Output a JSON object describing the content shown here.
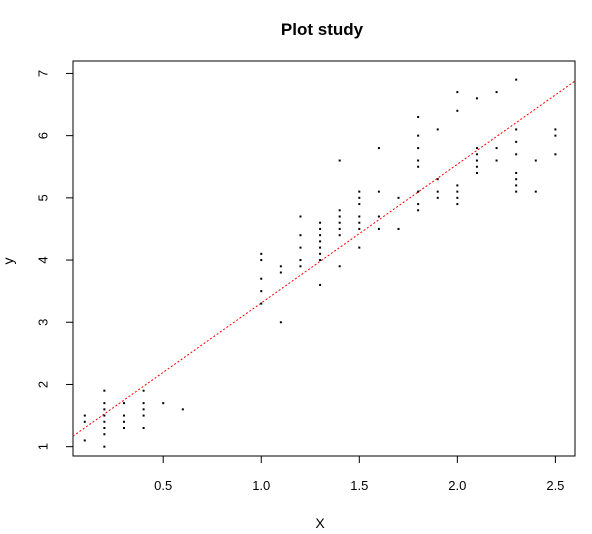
{
  "chart_data": {
    "type": "scatter",
    "title": "Plot study",
    "xlabel": "X",
    "ylabel": "y",
    "xlim": [
      0.04,
      2.6
    ],
    "ylim": [
      0.85,
      7.2
    ],
    "xticks": [
      0.5,
      1.0,
      1.5,
      2.0,
      2.5
    ],
    "xtick_labels": [
      "0.5",
      "1.0",
      "1.5",
      "2.0",
      "2.5"
    ],
    "yticks": [
      1,
      2,
      3,
      4,
      5,
      6,
      7
    ],
    "ytick_labels": [
      "1",
      "2",
      "3",
      "4",
      "5",
      "6",
      "7"
    ],
    "grid": false,
    "legend": "none",
    "point_color": "#000000",
    "fit_line_color": "#ff0000",
    "fit_line": {
      "intercept": 1.08,
      "slope": 2.23
    },
    "points": [
      [
        0.1,
        1.1
      ],
      [
        0.1,
        1.4
      ],
      [
        0.1,
        1.5
      ],
      [
        0.2,
        1.0
      ],
      [
        0.2,
        1.2
      ],
      [
        0.2,
        1.3
      ],
      [
        0.2,
        1.4
      ],
      [
        0.2,
        1.5
      ],
      [
        0.2,
        1.6
      ],
      [
        0.2,
        1.7
      ],
      [
        0.2,
        1.9
      ],
      [
        0.3,
        1.3
      ],
      [
        0.3,
        1.4
      ],
      [
        0.3,
        1.5
      ],
      [
        0.3,
        1.7
      ],
      [
        0.4,
        1.3
      ],
      [
        0.4,
        1.5
      ],
      [
        0.4,
        1.6
      ],
      [
        0.4,
        1.7
      ],
      [
        0.4,
        1.9
      ],
      [
        0.5,
        1.7
      ],
      [
        0.6,
        1.6
      ],
      [
        1.0,
        3.3
      ],
      [
        1.0,
        3.5
      ],
      [
        1.0,
        3.7
      ],
      [
        1.0,
        4.0
      ],
      [
        1.0,
        4.1
      ],
      [
        1.1,
        3.0
      ],
      [
        1.1,
        3.8
      ],
      [
        1.1,
        3.9
      ],
      [
        1.2,
        3.9
      ],
      [
        1.2,
        4.0
      ],
      [
        1.2,
        4.2
      ],
      [
        1.2,
        4.4
      ],
      [
        1.2,
        4.7
      ],
      [
        1.3,
        3.6
      ],
      [
        1.3,
        4.0
      ],
      [
        1.3,
        4.1
      ],
      [
        1.3,
        4.2
      ],
      [
        1.3,
        4.3
      ],
      [
        1.3,
        4.4
      ],
      [
        1.3,
        4.5
      ],
      [
        1.3,
        4.6
      ],
      [
        1.4,
        3.9
      ],
      [
        1.4,
        4.4
      ],
      [
        1.4,
        4.5
      ],
      [
        1.4,
        4.6
      ],
      [
        1.4,
        4.7
      ],
      [
        1.4,
        4.8
      ],
      [
        1.4,
        5.6
      ],
      [
        1.5,
        4.2
      ],
      [
        1.5,
        4.5
      ],
      [
        1.5,
        4.6
      ],
      [
        1.5,
        4.7
      ],
      [
        1.5,
        4.9
      ],
      [
        1.5,
        5.0
      ],
      [
        1.5,
        5.1
      ],
      [
        1.6,
        4.5
      ],
      [
        1.6,
        4.7
      ],
      [
        1.6,
        5.1
      ],
      [
        1.6,
        5.8
      ],
      [
        1.7,
        4.5
      ],
      [
        1.7,
        5.0
      ],
      [
        1.8,
        4.8
      ],
      [
        1.8,
        4.9
      ],
      [
        1.8,
        5.1
      ],
      [
        1.8,
        5.5
      ],
      [
        1.8,
        5.6
      ],
      [
        1.8,
        5.8
      ],
      [
        1.8,
        6.0
      ],
      [
        1.8,
        6.3
      ],
      [
        1.9,
        5.0
      ],
      [
        1.9,
        5.1
      ],
      [
        1.9,
        5.3
      ],
      [
        1.9,
        6.1
      ],
      [
        2.0,
        4.9
      ],
      [
        2.0,
        5.0
      ],
      [
        2.0,
        5.1
      ],
      [
        2.0,
        5.2
      ],
      [
        2.0,
        6.4
      ],
      [
        2.0,
        6.7
      ],
      [
        2.1,
        5.4
      ],
      [
        2.1,
        5.5
      ],
      [
        2.1,
        5.6
      ],
      [
        2.1,
        5.7
      ],
      [
        2.1,
        5.8
      ],
      [
        2.1,
        6.6
      ],
      [
        2.2,
        5.6
      ],
      [
        2.2,
        5.8
      ],
      [
        2.2,
        6.7
      ],
      [
        2.3,
        5.1
      ],
      [
        2.3,
        5.2
      ],
      [
        2.3,
        5.3
      ],
      [
        2.3,
        5.4
      ],
      [
        2.3,
        5.7
      ],
      [
        2.3,
        5.9
      ],
      [
        2.3,
        6.1
      ],
      [
        2.3,
        6.9
      ],
      [
        2.4,
        5.1
      ],
      [
        2.4,
        5.6
      ],
      [
        2.5,
        5.7
      ],
      [
        2.5,
        6.0
      ],
      [
        2.5,
        6.1
      ]
    ]
  }
}
